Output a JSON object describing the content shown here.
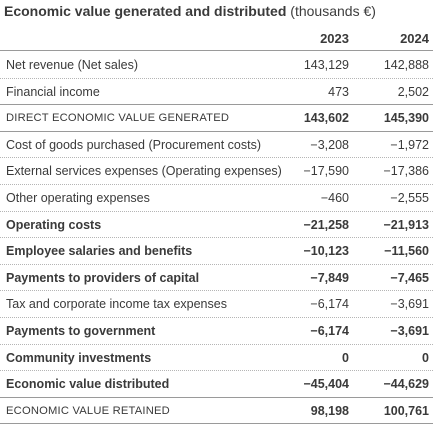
{
  "title": {
    "main": "Economic value generated and distributed",
    "unit": "(thousands €)"
  },
  "columns": [
    "2023",
    "2024"
  ],
  "rows": [
    {
      "label": "Net revenue (Net sales)",
      "v2023": "143,129",
      "v2024": "142,888",
      "style": "normal",
      "rule": "dotted"
    },
    {
      "label": "Financial income",
      "v2023": "473",
      "v2024": "2,502",
      "style": "normal",
      "rule": "solid"
    },
    {
      "label": "DIRECT ECONOMIC VALUE GENERATED",
      "v2023": "143,602",
      "v2024": "145,390",
      "style": "caps",
      "rule": "solid"
    },
    {
      "label": "Cost of goods purchased (Procurement costs)",
      "v2023": "−3,208",
      "v2024": "−1,972",
      "style": "normal",
      "rule": "dotted"
    },
    {
      "label": "External services expenses (Operating expenses)",
      "v2023": "−17,590",
      "v2024": "−17,386",
      "style": "normal",
      "rule": "dotted"
    },
    {
      "label": "Other operating expenses",
      "v2023": "−460",
      "v2024": "−2,555",
      "style": "normal",
      "rule": "dotted"
    },
    {
      "label": "Operating costs",
      "v2023": "−21,258",
      "v2024": "−21,913",
      "style": "bold",
      "rule": "dotted"
    },
    {
      "label": "Employee salaries and benefits",
      "v2023": "−10,123",
      "v2024": "−11,560",
      "style": "bold",
      "rule": "dotted"
    },
    {
      "label": "Payments to providers of capital",
      "v2023": "−7,849",
      "v2024": "−7,465",
      "style": "bold",
      "rule": "dotted"
    },
    {
      "label": "Tax and corporate income tax expenses",
      "v2023": "−6,174",
      "v2024": "−3,691",
      "style": "normal",
      "rule": "dotted"
    },
    {
      "label": "Payments to government",
      "v2023": "−6,174",
      "v2024": "−3,691",
      "style": "bold",
      "rule": "dotted"
    },
    {
      "label": "Community investments",
      "v2023": "0",
      "v2024": "0",
      "style": "bold",
      "rule": "dotted"
    },
    {
      "label": "Economic value distributed",
      "v2023": "−45,404",
      "v2024": "−44,629",
      "style": "bold",
      "rule": "solid"
    },
    {
      "label": "ECONOMIC VALUE RETAINED",
      "v2023": "98,198",
      "v2024": "100,761",
      "style": "caps",
      "rule": "solid"
    }
  ]
}
